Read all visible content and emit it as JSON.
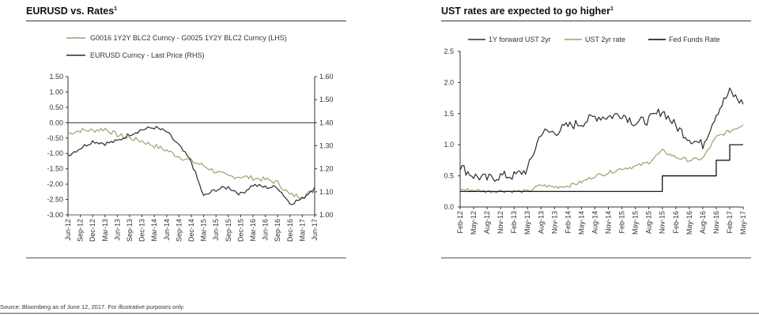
{
  "colors": {
    "gold": "#a89a6e",
    "dark": "#2b2b2b",
    "black": "#000000"
  },
  "footer": {
    "source": "Source: Bloomberg as of June 12, 2017. For illustrative purposes only."
  },
  "chart_data": [
    {
      "type": "line",
      "title": "EURUSD vs. Rates",
      "title_sup": "1",
      "x_tick_labels": [
        "Jun-12",
        "Sep-12",
        "Dec-12",
        "Mar-13",
        "Jun-13",
        "Sep-13",
        "Dec-13",
        "Mar-14",
        "Jun-14",
        "Sep-14",
        "Dec-14",
        "Mar-15",
        "Jun-15",
        "Sep-15",
        "Dec-15",
        "Mar-16",
        "Jun-16",
        "Sep-16",
        "Dec-16",
        "Mar-17",
        "Jun-17"
      ],
      "ylim_left": [
        -3.0,
        1.5
      ],
      "yticks_left": [
        "1.50",
        "1.00",
        "0.50",
        "0.00",
        "-0.50",
        "-1.00",
        "-1.50",
        "-2.00",
        "-2.50",
        "-3.00"
      ],
      "ylim_right": [
        1.0,
        1.6
      ],
      "yticks_right": [
        "1.60",
        "1.50",
        "1.40",
        "1.30",
        "1.20",
        "1.10",
        "1.00"
      ],
      "grid": false,
      "legend_position": "top",
      "series": [
        {
          "name": "G0016 1Y2Y BLC2 Curncy - G0025 1Y2Y BLC2 Curncy (LHS)",
          "axis": "left",
          "color": "gold",
          "x": [
            0,
            1,
            2,
            3,
            4,
            5,
            6,
            7,
            8,
            9,
            10,
            11,
            12,
            13,
            14,
            15,
            16,
            17,
            18,
            19,
            20
          ],
          "y": [
            -0.35,
            -0.25,
            -0.25,
            -0.2,
            -0.4,
            -0.5,
            -0.6,
            -0.75,
            -0.9,
            -1.1,
            -1.25,
            -1.4,
            -1.6,
            -1.75,
            -1.75,
            -1.8,
            -1.85,
            -1.95,
            -2.35,
            -2.4,
            -2.2
          ]
        },
        {
          "name": "EURUSD Curncy - Last Price (RHS)",
          "axis": "right",
          "color": "dark",
          "x": [
            0,
            1,
            2,
            3,
            4,
            5,
            6,
            7,
            8,
            9,
            10,
            11,
            12,
            13,
            14,
            15,
            16,
            17,
            18,
            19,
            20
          ],
          "y": [
            1.26,
            1.29,
            1.32,
            1.31,
            1.32,
            1.35,
            1.37,
            1.38,
            1.36,
            1.3,
            1.23,
            1.08,
            1.11,
            1.12,
            1.09,
            1.13,
            1.12,
            1.12,
            1.05,
            1.07,
            1.12
          ]
        }
      ]
    },
    {
      "type": "line",
      "title": "UST rates are expected to go higher",
      "title_sup": "1",
      "x_tick_labels": [
        "Feb-12",
        "May-12",
        "Aug-12",
        "Nov-12",
        "Feb-13",
        "May-13",
        "Aug-13",
        "Nov-13",
        "Feb-14",
        "May-14",
        "Aug-14",
        "Nov-14",
        "Feb-15",
        "May-15",
        "Aug-15",
        "Nov-15",
        "Feb-16",
        "May-16",
        "Aug-16",
        "Nov-16",
        "Feb-17",
        "May-17"
      ],
      "ylim": [
        0.0,
        2.5
      ],
      "yticks": [
        "2.5",
        "2.0",
        "1.5",
        "1.0",
        "0.5",
        "0.0"
      ],
      "grid": false,
      "legend_position": "top",
      "series": [
        {
          "name": "1Y forward UST 2yr",
          "color": "dark",
          "x": [
            0,
            1,
            2,
            3,
            4,
            5,
            6,
            7,
            8,
            9,
            10,
            11,
            12,
            13,
            14,
            15,
            16,
            17,
            18,
            19,
            20,
            21
          ],
          "y": [
            0.65,
            0.5,
            0.45,
            0.5,
            0.5,
            0.6,
            1.2,
            1.2,
            1.3,
            1.35,
            1.45,
            1.45,
            1.5,
            1.35,
            1.4,
            1.55,
            1.3,
            1.1,
            1.0,
            1.5,
            1.85,
            1.65
          ]
        },
        {
          "name": "UST 2yr rate",
          "color": "gold",
          "x": [
            0,
            1,
            2,
            3,
            4,
            5,
            6,
            7,
            8,
            9,
            10,
            11,
            12,
            13,
            14,
            15,
            16,
            17,
            18,
            19,
            20,
            21
          ],
          "y": [
            0.28,
            0.27,
            0.25,
            0.26,
            0.25,
            0.25,
            0.35,
            0.32,
            0.34,
            0.4,
            0.5,
            0.55,
            0.62,
            0.65,
            0.72,
            0.9,
            0.8,
            0.75,
            0.78,
            1.12,
            1.22,
            1.32
          ]
        },
        {
          "name": "Fed Funds Rate",
          "color": "black",
          "x": [
            0,
            15,
            15,
            19,
            19,
            20,
            20,
            21
          ],
          "y": [
            0.25,
            0.25,
            0.5,
            0.5,
            0.75,
            0.75,
            1.0,
            1.0
          ]
        }
      ]
    }
  ]
}
